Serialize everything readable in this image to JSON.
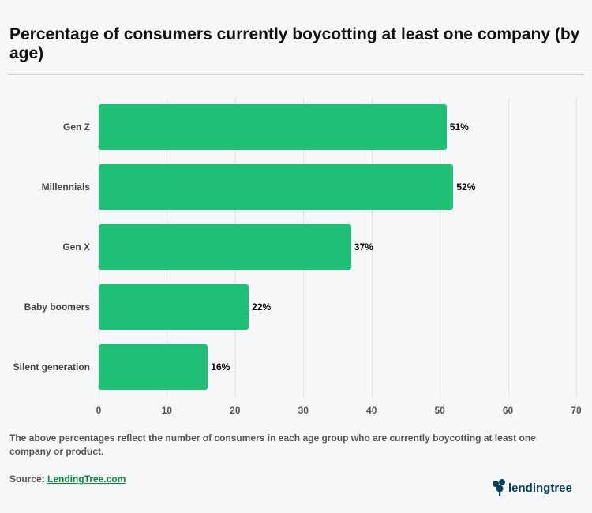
{
  "title": "Percentage of consumers currently boycotting at least one company (by age)",
  "chart": {
    "type": "bar-horizontal",
    "bar_color": "#1fc076",
    "bar_radius": 3,
    "background_color": "#f6f7f8",
    "grid_color": "#e3e3e3",
    "xlim": [
      0,
      70
    ],
    "xtick_step": 10,
    "xticks": [
      0,
      10,
      20,
      30,
      40,
      50,
      60,
      70
    ],
    "label_fontsize": 12,
    "label_fontweight": "bold",
    "categories": [
      "Gen Z",
      "Millennials",
      "Gen X",
      "Baby boomers",
      "Silent generation"
    ],
    "values": [
      51,
      52,
      37,
      22,
      16
    ],
    "value_labels": [
      "51%",
      "52%",
      "37%",
      "22%",
      "16%"
    ]
  },
  "caption": "The above percentages reflect the number of consumers in each age group who are currently boycotting at least one company or product.",
  "source_prefix": "Source: ",
  "source_link_text": "LendingTree.com",
  "logo_text": "lendingtree",
  "logo_color": "#08415c"
}
